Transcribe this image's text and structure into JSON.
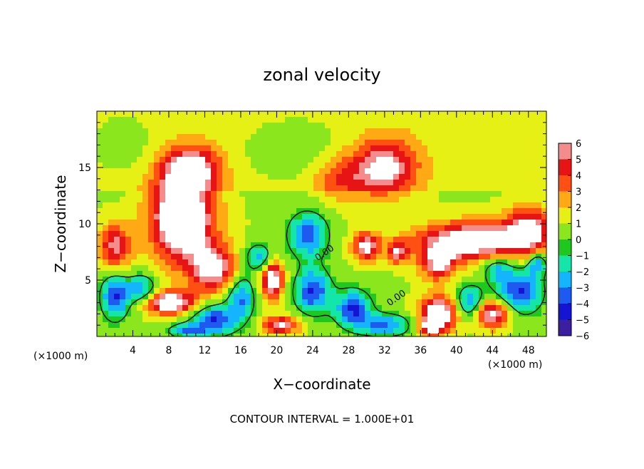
{
  "chart_data": {
    "type": "heatmap",
    "title": "zonal velocity",
    "xlabel": "X−coordinate",
    "ylabel": "Z−coordinate",
    "x_unit_left": "(×1000 m)",
    "x_unit_right": "(×1000 m)",
    "footer": "CONTOUR INTERVAL = 1.000E+01",
    "xlim": [
      0,
      50
    ],
    "ylim": [
      0,
      20
    ],
    "x_ticks": [
      4,
      8,
      12,
      16,
      20,
      24,
      28,
      32,
      36,
      40,
      44,
      48
    ],
    "x_tick_labels": [
      "4",
      "8",
      "12",
      "16",
      "20",
      "24",
      "28",
      "32",
      "36",
      "40",
      "44",
      "48"
    ],
    "y_ticks": [
      5,
      10,
      15
    ],
    "y_tick_labels": [
      "5",
      "10",
      "15"
    ],
    "colorbar": {
      "min": -6,
      "max": 6,
      "ticks": [
        6,
        5,
        4,
        3,
        2,
        1,
        0,
        -1,
        -2,
        -3,
        -4,
        -5,
        -6
      ],
      "tick_labels": [
        "6",
        "5",
        "4",
        "3",
        "2",
        "1",
        "0",
        "−1",
        "−2",
        "−3",
        "−4",
        "−5",
        "−6"
      ]
    },
    "contour_labels": [
      {
        "text": "0.00",
        "x": 25.5,
        "z": 7.2
      },
      {
        "text": "0.00",
        "x": 33.5,
        "z": 3.2
      }
    ],
    "features": [
      {
        "x": 9.5,
        "z": 10.5,
        "v": 8.0,
        "sx": 3.5,
        "sz": 3.8
      },
      {
        "x": 10.5,
        "z": 15.0,
        "v": 5.0,
        "sx": 3.0,
        "sz": 1.8
      },
      {
        "x": 13.0,
        "z": 6.0,
        "v": 5.5,
        "sx": 2.5,
        "sz": 2.0
      },
      {
        "x": 2.0,
        "z": 8.0,
        "v": 4.5,
        "sx": 1.8,
        "sz": 2.0
      },
      {
        "x": 8.0,
        "z": 3.0,
        "v": 7.0,
        "sx": 3.0,
        "sz": 1.0
      },
      {
        "x": 19.5,
        "z": 5.0,
        "v": 6.5,
        "sx": 1.2,
        "sz": 1.6
      },
      {
        "x": 32.0,
        "z": 15.0,
        "v": 5.0,
        "sx": 3.5,
        "sz": 2.5
      },
      {
        "x": 27.0,
        "z": 14.0,
        "v": 2.5,
        "sx": 3.0,
        "sz": 2.0
      },
      {
        "x": 30.0,
        "z": 8.0,
        "v": 5.5,
        "sx": 1.5,
        "sz": 1.2
      },
      {
        "x": 33.5,
        "z": 7.5,
        "v": 4.5,
        "sx": 1.2,
        "sz": 1.0
      },
      {
        "x": 42.0,
        "z": 8.5,
        "v": 7.0,
        "sx": 6.0,
        "sz": 1.6
      },
      {
        "x": 38.0,
        "z": 6.5,
        "v": 5.0,
        "sx": 2.0,
        "sz": 1.5
      },
      {
        "x": 48.0,
        "z": 9.5,
        "v": 5.0,
        "sx": 2.5,
        "sz": 2.0
      },
      {
        "x": 38.0,
        "z": 2.0,
        "v": 7.0,
        "sx": 2.0,
        "sz": 1.5
      },
      {
        "x": 44.0,
        "z": 2.0,
        "v": 6.0,
        "sx": 2.0,
        "sz": 1.2
      },
      {
        "x": 37.0,
        "z": 0.8,
        "v": 4.0,
        "sx": 1.2,
        "sz": 0.8
      },
      {
        "x": 20.5,
        "z": 1.0,
        "v": 5.0,
        "sx": 2.0,
        "sz": 0.8
      },
      {
        "x": 2.0,
        "z": 3.5,
        "v": -5.0,
        "sx": 1.5,
        "sz": 2.0
      },
      {
        "x": 5.0,
        "z": 4.0,
        "v": -4.0,
        "sx": 1.8,
        "sz": 1.5
      },
      {
        "x": 13.0,
        "z": 1.5,
        "v": -5.0,
        "sx": 2.5,
        "sz": 1.4
      },
      {
        "x": 16.0,
        "z": 3.5,
        "v": -4.0,
        "sx": 1.5,
        "sz": 2.0
      },
      {
        "x": 23.5,
        "z": 9.0,
        "v": -4.5,
        "sx": 2.2,
        "sz": 2.0
      },
      {
        "x": 24.0,
        "z": 4.0,
        "v": -5.0,
        "sx": 2.0,
        "sz": 2.0
      },
      {
        "x": 18.0,
        "z": 7.0,
        "v": -3.5,
        "sx": 1.5,
        "sz": 1.2
      },
      {
        "x": 28.5,
        "z": 2.5,
        "v": -5.0,
        "sx": 2.0,
        "sz": 1.6
      },
      {
        "x": 32.0,
        "z": 1.0,
        "v": -4.0,
        "sx": 3.0,
        "sz": 1.0
      },
      {
        "x": 41.5,
        "z": 3.0,
        "v": -4.0,
        "sx": 1.6,
        "sz": 1.5
      },
      {
        "x": 47.0,
        "z": 4.0,
        "v": -5.0,
        "sx": 2.5,
        "sz": 2.0
      },
      {
        "x": 44.5,
        "z": 6.0,
        "v": -3.0,
        "sx": 1.5,
        "sz": 1.2
      },
      {
        "x": 10.0,
        "z": 0.5,
        "v": -4.0,
        "sx": 2.0,
        "sz": 0.6
      },
      {
        "x": 49.0,
        "z": 6.5,
        "v": -4.0,
        "sx": 1.0,
        "sz": 1.0
      },
      {
        "x": 22.0,
        "z": 16.5,
        "v": -1.2,
        "sx": 6.0,
        "sz": 3.0
      },
      {
        "x": 3.0,
        "z": 17.0,
        "v": -1.0,
        "sx": 4.0,
        "sz": 3.0
      }
    ]
  }
}
